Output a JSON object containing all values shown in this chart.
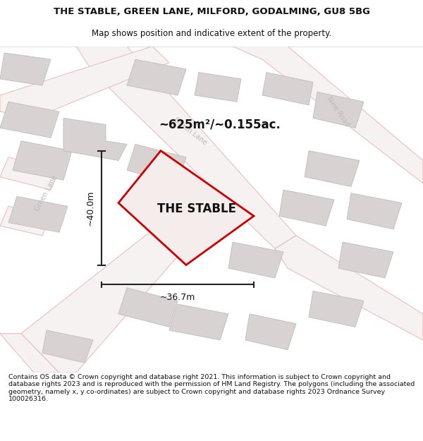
{
  "title_line1": "THE STABLE, GREEN LANE, MILFORD, GODALMING, GU8 5BG",
  "title_line2": "Map shows position and indicative extent of the property.",
  "property_label": "THE STABLE",
  "area_label": "~625m²/~0.155ac.",
  "width_label": "~36.7m",
  "height_label": "~40.0m",
  "footer_text": "Contains OS data © Crown copyright and database right 2021. This information is subject to Crown copyright and database rights 2023 and is reproduced with the permission of HM Land Registry. The polygons (including the associated geometry, namely x, y co-ordinates) are subject to Crown copyright and database rights 2023 Ordnance Survey 100026316.",
  "map_bg": "#f7f2f2",
  "road_color": "#e8b8b8",
  "road_fill": "#f7f2f2",
  "building_fill": "#d8d2d2",
  "building_edge": "#c0bcbc",
  "property_color": "#cc0000",
  "property_fill": "#f5ecec",
  "street_color": "#c0b8b8",
  "dim_color": "#222222",
  "title_color": "#111111",
  "footer_color": "#111111",
  "white": "#ffffff"
}
